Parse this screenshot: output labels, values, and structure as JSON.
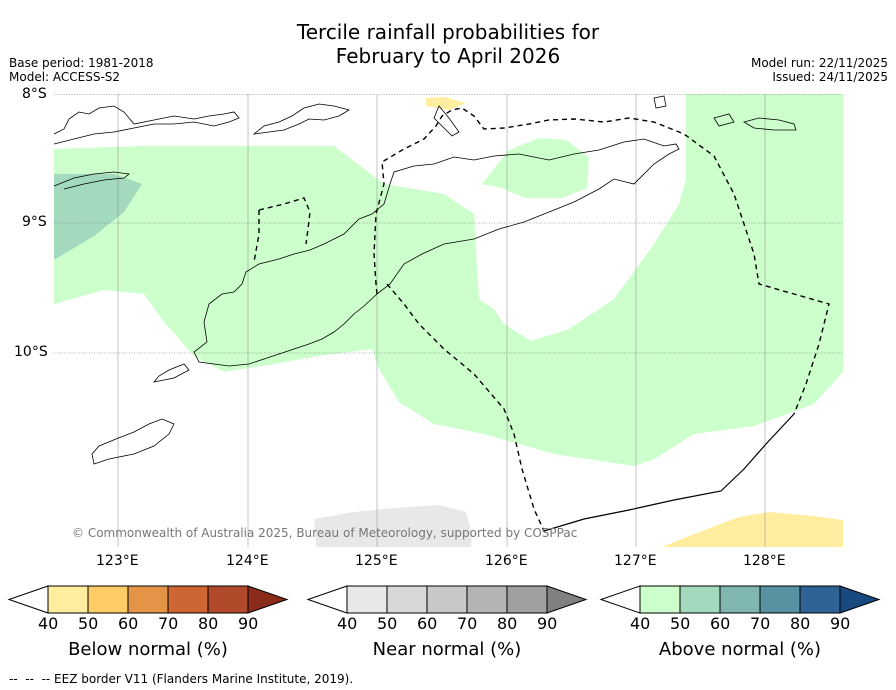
{
  "header": {
    "title_line1": "Tercile rainfall probabilities for",
    "title_line2": "February to April 2026",
    "base_period": "Base period: 1981-2018",
    "model": "Model: ACCESS-S2",
    "model_run": "Model run: 22/11/2025",
    "issued": "Issued: 24/11/2025"
  },
  "map": {
    "lat_labels": [
      "8°S",
      "9°S",
      "10°S"
    ],
    "lon_labels": [
      "123°E",
      "124°E",
      "125°E",
      "126°E",
      "127°E",
      "128°E"
    ],
    "copyright": "© Commonwealth of Australia 2025, Bureau of Meteorology, supported by COSPPac"
  },
  "colorbars": [
    {
      "label": "Below normal (%)",
      "ticks": [
        "40",
        "50",
        "60",
        "70",
        "80",
        "90"
      ],
      "colors": [
        "#ffffff",
        "#ffeea0",
        "#fdcc66",
        "#e39446",
        "#cd6633",
        "#b04a2a",
        "#8b2c1b"
      ]
    },
    {
      "label": "Near normal (%)",
      "ticks": [
        "40",
        "50",
        "60",
        "70",
        "80",
        "90"
      ],
      "colors": [
        "#ffffff",
        "#e8e8e8",
        "#d8d8d8",
        "#c8c8c8",
        "#b4b4b4",
        "#a0a0a0",
        "#808080"
      ]
    },
    {
      "label": "Above normal (%)",
      "ticks": [
        "40",
        "50",
        "60",
        "70",
        "80",
        "90"
      ],
      "colors": [
        "#ffffff",
        "#ccffcc",
        "#a3d9bd",
        "#7fb6af",
        "#5891a1",
        "#2f6396",
        "#184a80"
      ]
    }
  ],
  "footer": {
    "legend_text": "--  --  -- EEZ border V11 (Flanders Marine Institute, 2019)."
  },
  "colors": {
    "above_normal_40": "#ccffcc",
    "above_normal_50": "#a3d9bd",
    "below_normal_40": "#ffeea0",
    "near_normal_40": "#e8e8e8"
  }
}
